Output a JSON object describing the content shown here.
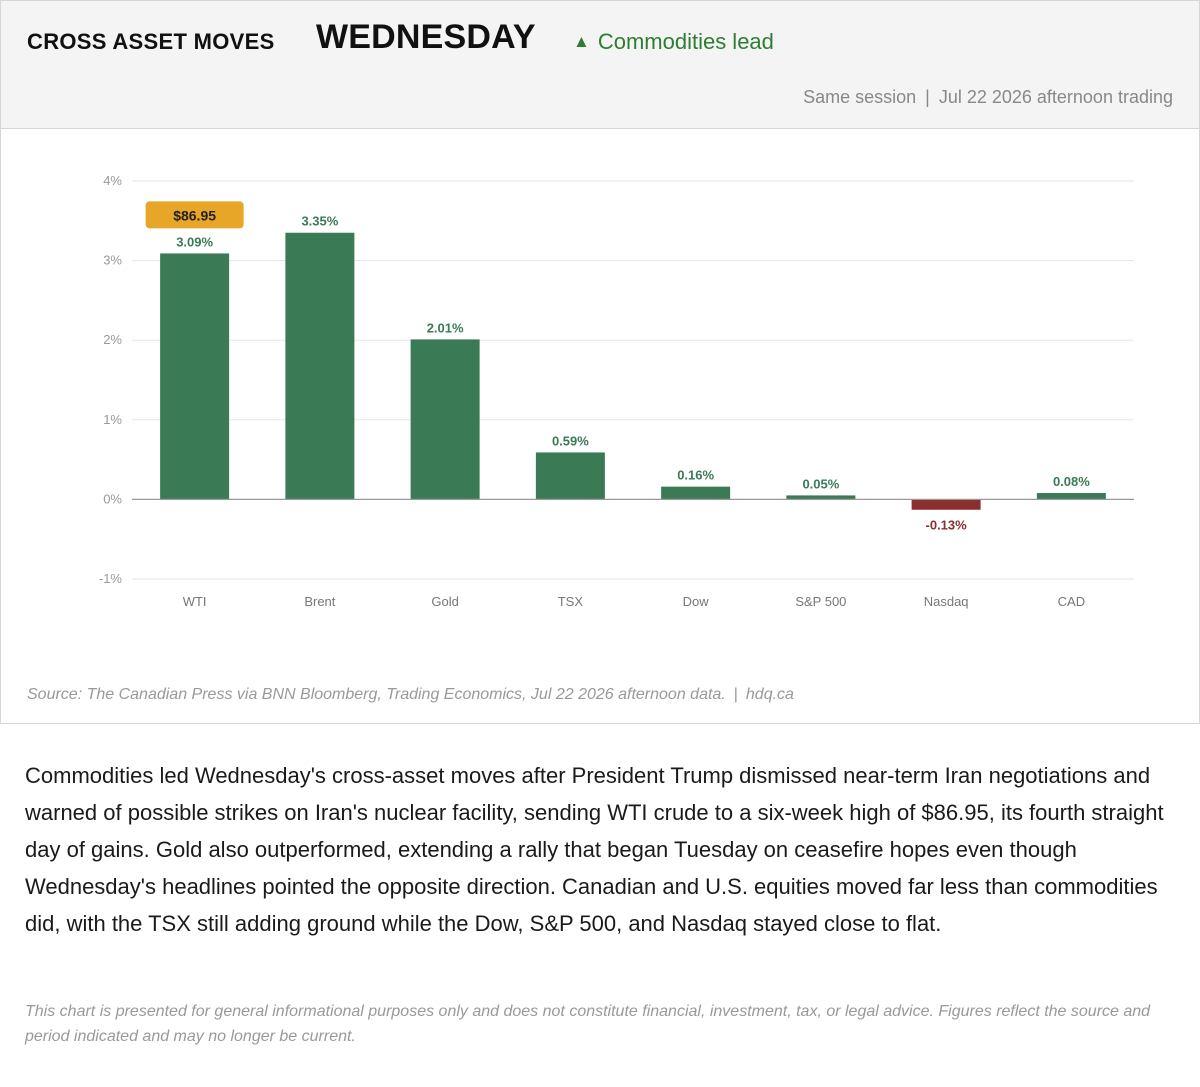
{
  "header": {
    "kicker": "CROSS ASSET MOVES",
    "headline": "WEDNESDAY",
    "tag_icon": "up-triangle-icon",
    "tag_label": "Commodities lead",
    "session_label": "Same session",
    "session_date": "Jul 22 2026 afternoon trading"
  },
  "colors": {
    "positive": "#3a7a55",
    "negative": "#8b2e2e",
    "highlight": "#e8a628",
    "tag": "#2e7d32"
  },
  "chart_data": {
    "type": "bar",
    "categories": [
      "WTI",
      "Brent",
      "Gold",
      "TSX",
      "Dow",
      "S&P 500",
      "Nasdaq",
      "CAD"
    ],
    "values": [
      3.09,
      3.35,
      2.01,
      0.59,
      0.16,
      0.05,
      -0.13,
      0.08
    ],
    "value_labels": [
      "3.09%",
      "3.35%",
      "2.01%",
      "0.59%",
      "0.16%",
      "0.05%",
      "-0.13%",
      "0.08%"
    ],
    "ylim": [
      -1,
      4
    ],
    "yticks": [
      -1,
      0,
      1,
      2,
      3,
      4
    ],
    "ytick_labels": [
      "-1%",
      "0%",
      "1%",
      "2%",
      "3%",
      "4%"
    ],
    "grid": true,
    "annotation": {
      "category": "WTI",
      "text": "$86.95"
    }
  },
  "footer": {
    "source": "Source: The Canadian Press via BNN Bloomberg, Trading Economics, Jul 22 2026 afternoon data.",
    "site": "hdq.ca"
  },
  "body_text": "Commodities led Wednesday's cross-asset moves after President Trump dismissed near-term Iran negotiations and warned of possible strikes on Iran's nuclear facility, sending WTI crude to a six-week high of $86.95, its fourth straight day of gains. Gold also outperformed, extending a rally that began Tuesday on ceasefire hopes even though Wednesday's headlines pointed the opposite direction. Canadian and U.S. equities moved far less than commodities did, with the TSX still adding ground while the Dow, S&P 500, and Nasdaq stayed close to flat.",
  "disclaimer": "This chart is presented for general informational purposes only and does not constitute financial, investment, tax, or legal advice. Figures reflect the source and period indicated and may no longer be current."
}
